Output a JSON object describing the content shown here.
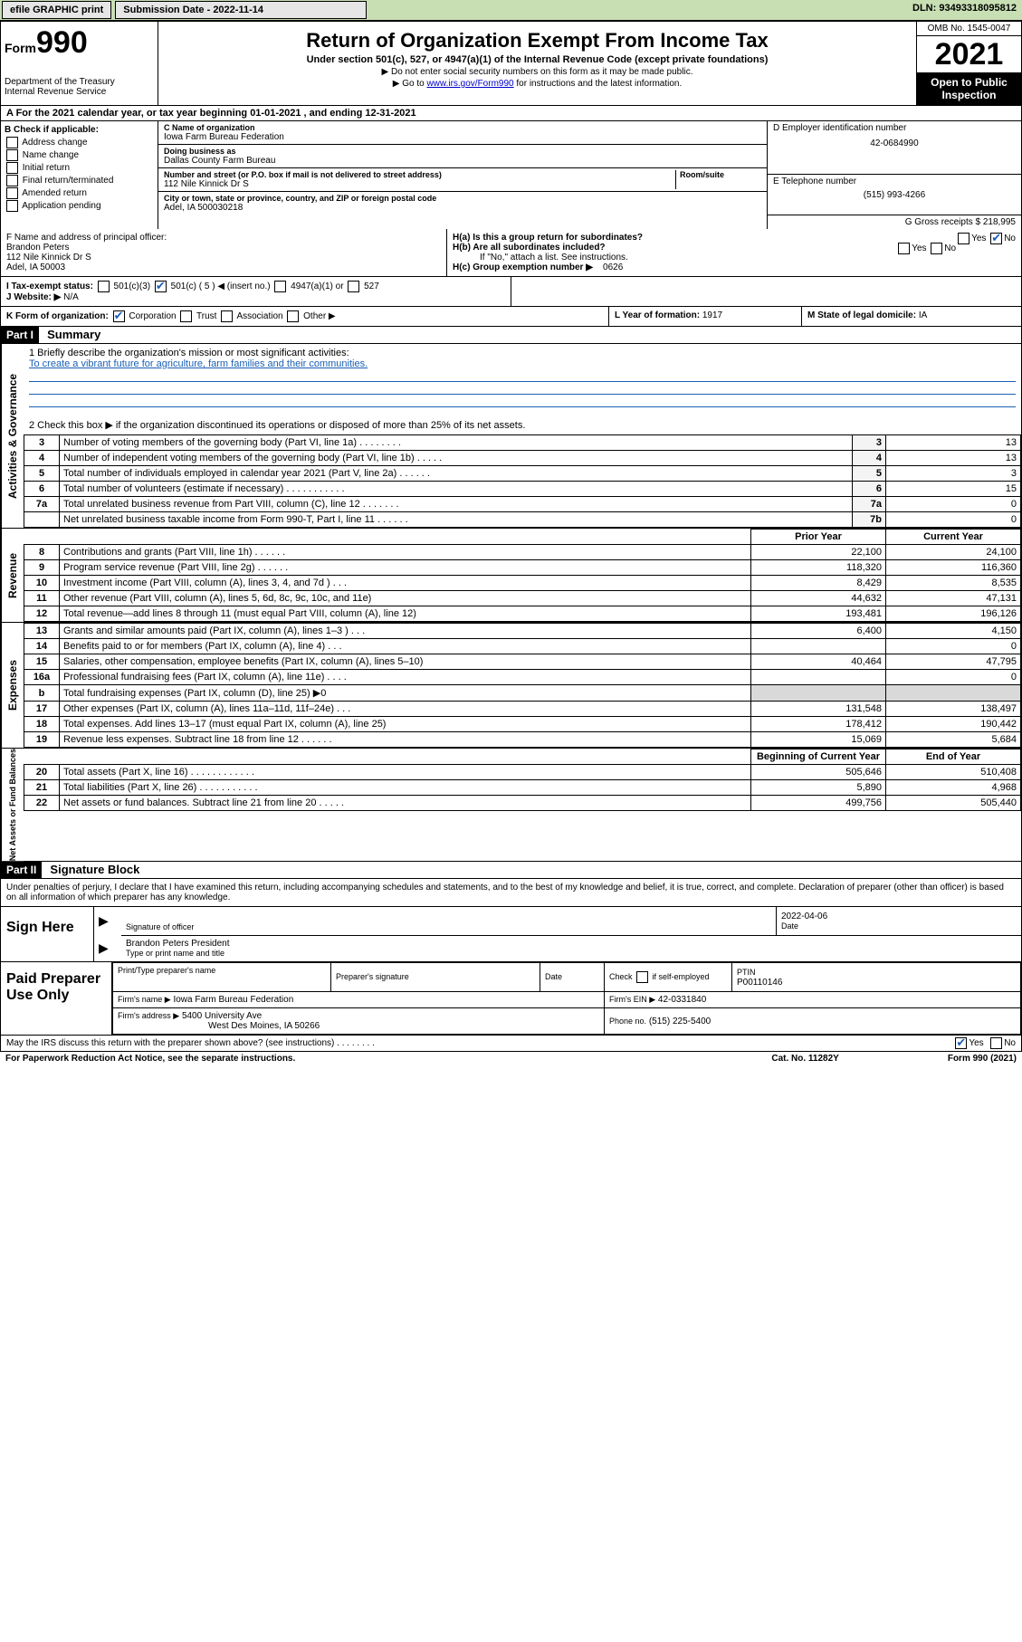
{
  "topbar": {
    "efile": "efile GRAPHIC print",
    "submission_label": "Submission Date - 2022-11-14",
    "dln": "DLN: 93493318095812"
  },
  "header": {
    "form_prefix": "Form",
    "form_number": "990",
    "title": "Return of Organization Exempt From Income Tax",
    "subtitle": "Under section 501(c), 527, or 4947(a)(1) of the Internal Revenue Code (except private foundations)",
    "note1": "▶ Do not enter social security numbers on this form as it may be made public.",
    "note2_pre": "▶ Go to ",
    "note2_link": "www.irs.gov/Form990",
    "note2_post": " for instructions and the latest information.",
    "dept": "Department of the Treasury",
    "irs": "Internal Revenue Service",
    "omb": "OMB No. 1545-0047",
    "year": "2021",
    "open_public": "Open to Public Inspection"
  },
  "row_a": "A For the 2021 calendar year, or tax year beginning 01-01-2021     , and ending 12-31-2021",
  "section_b": {
    "title": "B Check if applicable:",
    "opts": [
      "Address change",
      "Name change",
      "Initial return",
      "Final return/terminated",
      "Amended return",
      "Application pending"
    ]
  },
  "section_c": {
    "name_label": "C Name of organization",
    "name": "Iowa Farm Bureau Federation",
    "dba_label": "Doing business as",
    "dba": "Dallas County Farm Bureau",
    "addr_label": "Number and street (or P.O. box if mail is not delivered to street address)",
    "room_label": "Room/suite",
    "addr": "112 Nile Kinnick Dr S",
    "city_label": "City or town, state or province, country, and ZIP or foreign postal code",
    "city": "Adel, IA  500030218"
  },
  "section_d": {
    "ein_label": "D Employer identification number",
    "ein": "42-0684990",
    "phone_label": "E Telephone number",
    "phone": "(515) 993-4266",
    "gross_label": "G Gross receipts $",
    "gross": "218,995"
  },
  "section_f": {
    "label": "F Name and address of principal officer:",
    "name": "Brandon Peters",
    "addr1": "112 Nile Kinnick Dr S",
    "addr2": "Adel, IA  50003"
  },
  "section_h": {
    "ha_label": "H(a)  Is this a group return for subordinates?",
    "hb_label": "H(b)  Are all subordinates included?",
    "note": "If \"No,\" attach a list. See instructions.",
    "hc_label": "H(c)  Group exemption number ▶",
    "hc_val": "0626",
    "yes": "Yes",
    "no": "No"
  },
  "row_i": {
    "label": "I    Tax-exempt status:",
    "o1": "501(c)(3)",
    "o2": "501(c) ( 5 ) ◀ (insert no.)",
    "o3": "4947(a)(1) or",
    "o4": "527"
  },
  "row_j": {
    "label": "J   Website: ▶",
    "val": "N/A"
  },
  "row_k": {
    "label": "K Form of organization:",
    "o1": "Corporation",
    "o2": "Trust",
    "o3": "Association",
    "o4": "Other ▶",
    "l_label": "L Year of formation:",
    "l_val": "1917",
    "m_label": "M State of legal domicile:",
    "m_val": "IA"
  },
  "part1": {
    "header": "Part I",
    "title": "Summary",
    "q1_label": "1   Briefly describe the organization's mission or most significant activities:",
    "q1_mission": "To create a vibrant future for agriculture, farm families and their communities.",
    "q2": "2   Check this box ▶        if the organization discontinued its operations or disposed of more than 25% of its net assets.",
    "lines_gov": [
      {
        "n": "3",
        "t": "Number of voting members of the governing body (Part VI, line 1a)   .     .     .     .     .     .     .     .",
        "box": "3",
        "v": "13"
      },
      {
        "n": "4",
        "t": "Number of independent voting members of the governing body (Part VI, line 1b)   .     .     .     .     .",
        "box": "4",
        "v": "13"
      },
      {
        "n": "5",
        "t": "Total number of individuals employed in calendar year 2021 (Part V, line 2a)   .     .     .     .     .     .",
        "box": "5",
        "v": "3"
      },
      {
        "n": "6",
        "t": "Total number of volunteers (estimate if necessary)   .     .     .     .     .     .     .     .     .     .     .",
        "box": "6",
        "v": "15"
      },
      {
        "n": "7a",
        "t": "Total unrelated business revenue from Part VIII, column (C), line 12   .     .     .     .     .     .     .",
        "box": "7a",
        "v": "0"
      },
      {
        "n": "",
        "t": "Net unrelated business taxable income from Form 990-T, Part I, line 11   .     .     .     .     .     .",
        "box": "7b",
        "v": "0"
      }
    ],
    "col_prior": "Prior Year",
    "col_current": "Current Year",
    "lines_rev": [
      {
        "n": "8",
        "t": "Contributions and grants (Part VIII, line 1h)   .     .     .     .     .     .",
        "p": "22,100",
        "c": "24,100"
      },
      {
        "n": "9",
        "t": "Program service revenue (Part VIII, line 2g)   .     .     .     .     .     .",
        "p": "118,320",
        "c": "116,360"
      },
      {
        "n": "10",
        "t": "Investment income (Part VIII, column (A), lines 3, 4, and 7d )   .     .     .",
        "p": "8,429",
        "c": "8,535"
      },
      {
        "n": "11",
        "t": "Other revenue (Part VIII, column (A), lines 5, 6d, 8c, 9c, 10c, and 11e)",
        "p": "44,632",
        "c": "47,131"
      },
      {
        "n": "12",
        "t": "Total revenue—add lines 8 through 11 (must equal Part VIII, column (A), line 12)",
        "p": "193,481",
        "c": "196,126"
      }
    ],
    "lines_exp": [
      {
        "n": "13",
        "t": "Grants and similar amounts paid (Part IX, column (A), lines 1–3 )   .     .     .",
        "p": "6,400",
        "c": "4,150"
      },
      {
        "n": "14",
        "t": "Benefits paid to or for members (Part IX, column (A), line 4)   .     .     .",
        "p": "",
        "c": "0"
      },
      {
        "n": "15",
        "t": "Salaries, other compensation, employee benefits (Part IX, column (A), lines 5–10)",
        "p": "40,464",
        "c": "47,795"
      },
      {
        "n": "16a",
        "t": "Professional fundraising fees (Part IX, column (A), line 11e)   .     .     .     .",
        "p": "",
        "c": "0"
      },
      {
        "n": "b",
        "t": "Total fundraising expenses (Part IX, column (D), line 25) ▶0",
        "p": "shade",
        "c": "shade"
      },
      {
        "n": "17",
        "t": "Other expenses (Part IX, column (A), lines 11a–11d, 11f–24e)   .     .     .",
        "p": "131,548",
        "c": "138,497"
      },
      {
        "n": "18",
        "t": "Total expenses. Add lines 13–17 (must equal Part IX, column (A), line 25)",
        "p": "178,412",
        "c": "190,442"
      },
      {
        "n": "19",
        "t": "Revenue less expenses. Subtract line 18 from line 12   .     .     .     .     .     .",
        "p": "15,069",
        "c": "5,684"
      }
    ],
    "col_begin": "Beginning of Current Year",
    "col_end": "End of Year",
    "lines_net": [
      {
        "n": "20",
        "t": "Total assets (Part X, line 16)   .     .     .     .     .     .     .     .     .     .     .     .",
        "p": "505,646",
        "c": "510,408"
      },
      {
        "n": "21",
        "t": "Total liabilities (Part X, line 26)   .     .     .     .     .     .     .     .     .     .     .",
        "p": "5,890",
        "c": "4,968"
      },
      {
        "n": "22",
        "t": "Net assets or fund balances. Subtract line 21 from line 20   .     .     .     .     .",
        "p": "499,756",
        "c": "505,440"
      }
    ],
    "vtab_gov": "Activities & Governance",
    "vtab_rev": "Revenue",
    "vtab_exp": "Expenses",
    "vtab_net": "Net Assets or Fund Balances"
  },
  "part2": {
    "header": "Part II",
    "title": "Signature Block",
    "decl": "Under penalties of perjury, I declare that I have examined this return, including accompanying schedules and statements, and to the best of my knowledge and belief, it is true, correct, and complete. Declaration of preparer (other than officer) is based on all information of which preparer has any knowledge.",
    "sign_here": "Sign Here",
    "sig_officer": "Signature of officer",
    "sig_date": "2022-04-06",
    "date_label": "Date",
    "officer_name": "Brandon Peters President",
    "name_label": "Type or print name and title",
    "paid": "Paid Preparer Use Only",
    "pp_name_label": "Print/Type preparer's name",
    "pp_sig_label": "Preparer's signature",
    "pp_date_label": "Date",
    "pp_check_label": "Check         if self-employed",
    "ptin_label": "PTIN",
    "ptin": "P00110146",
    "firm_name_label": "Firm's name     ▶",
    "firm_name": "Iowa Farm Bureau Federation",
    "firm_ein_label": "Firm's EIN ▶",
    "firm_ein": "42-0331840",
    "firm_addr_label": "Firm's address ▶",
    "firm_addr1": "5400 University Ave",
    "firm_addr2": "West Des Moines, IA  50266",
    "phone_label": "Phone no.",
    "phone": "(515) 225-5400",
    "may_irs": "May the IRS discuss this return with the preparer shown above? (see instructions)   .     .     .     .     .     .     .     .",
    "paperwork": "For Paperwork Reduction Act Notice, see the separate instructions.",
    "catno": "Cat. No. 11282Y",
    "formno": "Form 990 (2021)"
  },
  "colors": {
    "topbar_bg": "#c8dfb4",
    "link": "#0000cc",
    "check": "#1a5fb4",
    "shade": "#d9d9d9"
  }
}
